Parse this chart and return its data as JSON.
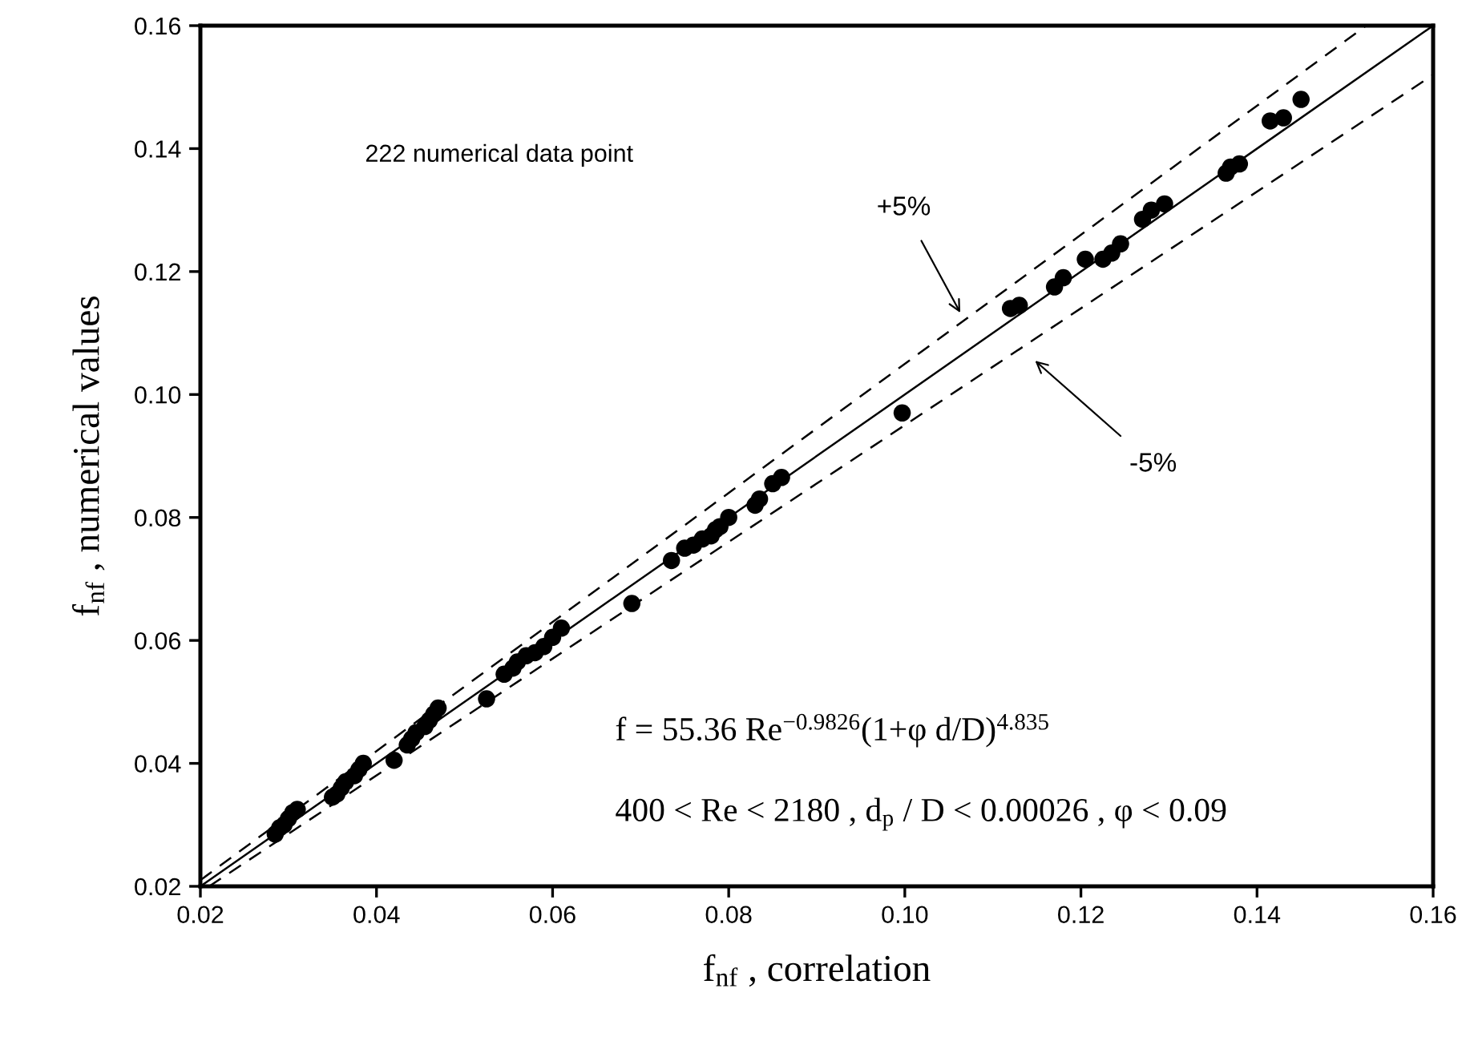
{
  "chart_data": {
    "type": "scatter",
    "xlabel": "f$_{nf}$ , correlation",
    "ylabel": "f$_{nf}$ , numerical values",
    "xlim": [
      0.02,
      0.16
    ],
    "ylim": [
      0.02,
      0.16
    ],
    "xticks": [
      {
        "value": 0.02,
        "label": "0.02"
      },
      {
        "value": 0.04,
        "label": "0.04"
      },
      {
        "value": 0.06,
        "label": "0.06"
      },
      {
        "value": 0.08,
        "label": "0.08"
      },
      {
        "value": 0.1,
        "label": "0.10"
      },
      {
        "value": 0.12,
        "label": "0.12"
      },
      {
        "value": 0.14,
        "label": "0.14"
      },
      {
        "value": 0.16,
        "label": "0.16"
      }
    ],
    "yticks": [
      {
        "value": 0.02,
        "label": "0.02"
      },
      {
        "value": 0.04,
        "label": "0.04"
      },
      {
        "value": 0.06,
        "label": "0.06"
      },
      {
        "value": 0.08,
        "label": "0.08"
      },
      {
        "value": 0.1,
        "label": "0.10"
      },
      {
        "value": 0.12,
        "label": "0.12"
      },
      {
        "value": 0.14,
        "label": "0.14"
      },
      {
        "value": 0.16,
        "label": "0.16"
      }
    ],
    "grid": false,
    "series": [
      {
        "marker": "circle",
        "color": "#000000",
        "x": [
          0.0285,
          0.029,
          0.0295,
          0.03,
          0.0305,
          0.031,
          0.035,
          0.0355,
          0.036,
          0.0365,
          0.0375,
          0.038,
          0.0385,
          0.042,
          0.0435,
          0.044,
          0.0445,
          0.0455,
          0.046,
          0.0465,
          0.047,
          0.0525,
          0.0545,
          0.0555,
          0.056,
          0.057,
          0.058,
          0.059,
          0.06,
          0.061,
          0.069,
          0.0735,
          0.075,
          0.076,
          0.077,
          0.078,
          0.0785,
          0.079,
          0.08,
          0.083,
          0.0835,
          0.085,
          0.086,
          0.0997,
          0.112,
          0.113,
          0.117,
          0.118,
          0.1205,
          0.1225,
          0.1235,
          0.1245,
          0.127,
          0.128,
          0.1295,
          0.1365,
          0.137,
          0.138,
          0.1415,
          0.143,
          0.145
        ],
        "values": [
          0.0285,
          0.0295,
          0.03,
          0.031,
          0.032,
          0.0325,
          0.0345,
          0.035,
          0.036,
          0.037,
          0.038,
          0.039,
          0.04,
          0.0405,
          0.043,
          0.044,
          0.045,
          0.046,
          0.047,
          0.048,
          0.049,
          0.0505,
          0.0545,
          0.0555,
          0.0565,
          0.0575,
          0.058,
          0.059,
          0.0605,
          0.062,
          0.066,
          0.073,
          0.075,
          0.0755,
          0.0765,
          0.077,
          0.078,
          0.0785,
          0.08,
          0.082,
          0.083,
          0.0855,
          0.0865,
          0.097,
          0.114,
          0.1145,
          0.1175,
          0.119,
          0.122,
          0.122,
          0.123,
          0.1245,
          0.1285,
          0.13,
          0.131,
          0.136,
          0.137,
          0.1375,
          0.1445,
          0.145,
          0.148
        ]
      },
      {
        "type": "line",
        "color": "#000000",
        "line_style": "solid",
        "x": [
          0.02,
          0.16
        ],
        "values": [
          0.02,
          0.16
        ]
      },
      {
        "type": "line",
        "color": "#000000",
        "line_style": "dashed",
        "x": [
          0.02,
          0.1524
        ],
        "values": [
          0.021,
          0.16
        ]
      },
      {
        "type": "line",
        "color": "#000000",
        "line_style": "dashed",
        "x": [
          0.021,
          0.16
        ],
        "values": [
          0.02,
          0.152
        ]
      }
    ],
    "annotations": [
      "222 numerical data point",
      "+5%",
      "-5%",
      "f = 55.36 Re$^{−0.9826}$(1+φ d/D)$^{4.835}$",
      "400 < Re < 2180 , d$_{p}$ / D < 0.00026 , φ < 0.09"
    ]
  }
}
